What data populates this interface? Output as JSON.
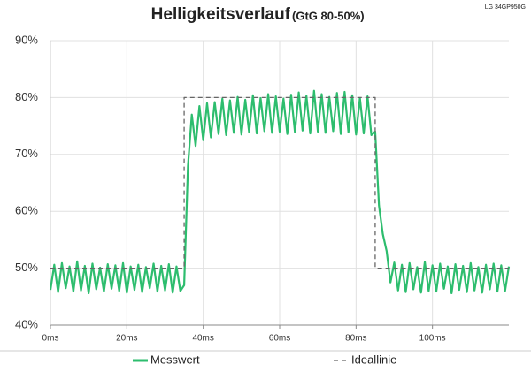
{
  "chart_data": {
    "type": "line",
    "title": "Helligkeitsverlauf",
    "subtitle": "(GtG 80-50%)",
    "annotation": "LG 34GP950G",
    "x": [
      0,
      1,
      2,
      3,
      4,
      5,
      6,
      7,
      8,
      9,
      10,
      11,
      12,
      13,
      14,
      15,
      16,
      17,
      18,
      19,
      20,
      21,
      22,
      23,
      24,
      25,
      26,
      27,
      28,
      29,
      30,
      31,
      32,
      33,
      34,
      35,
      36,
      37,
      38,
      39,
      40,
      41,
      42,
      43,
      44,
      45,
      46,
      47,
      48,
      49,
      50,
      51,
      52,
      53,
      54,
      55,
      56,
      57,
      58,
      59,
      60,
      61,
      62,
      63,
      64,
      65,
      66,
      67,
      68,
      69,
      70,
      71,
      72,
      73,
      74,
      75,
      76,
      77,
      78,
      79,
      80,
      81,
      82,
      83,
      84,
      85,
      86,
      87,
      88,
      89,
      90,
      91,
      92,
      93,
      94,
      95,
      96,
      97,
      98,
      99,
      100,
      101,
      102,
      103,
      104,
      105,
      106,
      107,
      108,
      109,
      110,
      111,
      112,
      113,
      114,
      115,
      116,
      117,
      118,
      119,
      120
    ],
    "series": [
      {
        "name": "Messwert",
        "color": "#2dbd6e",
        "dash": false,
        "values": [
          46.2,
          50.6,
          45.8,
          50.9,
          46.5,
          50.3,
          45.9,
          51.2,
          46.1,
          50.4,
          45.6,
          50.8,
          46.3,
          50.1,
          45.9,
          50.7,
          46.4,
          50.5,
          46.0,
          50.9,
          45.7,
          50.3,
          46.2,
          50.6,
          45.8,
          50.2,
          46.5,
          50.8,
          45.9,
          50.4,
          46.1,
          50.7,
          45.7,
          50.3,
          46.0,
          47,
          68,
          77,
          71.5,
          78.5,
          72.5,
          79,
          73,
          79.2,
          73.6,
          79.8,
          73.4,
          79.5,
          73.8,
          80.1,
          73.5,
          79.6,
          73.9,
          80.4,
          73.7,
          79.9,
          74.1,
          80.6,
          73.8,
          80.2,
          74.0,
          79.8,
          73.6,
          80.5,
          73.9,
          80.9,
          74.2,
          80.3,
          73.7,
          81.2,
          74.0,
          80.6,
          73.8,
          80.1,
          74.1,
          80.8,
          73.6,
          81.0,
          73.9,
          80.4,
          73.5,
          79.9,
          73.7,
          80.2,
          73.4,
          74,
          61,
          56,
          53,
          47.5,
          51,
          46.1,
          50.6,
          45.8,
          50.9,
          46.3,
          50.2,
          45.7,
          51.1,
          46.0,
          50.5,
          45.9,
          50.8,
          46.4,
          50.3,
          45.6,
          50.7,
          46.2,
          50.4,
          45.8,
          50.9,
          46.1,
          50.2,
          45.7,
          50.6,
          46.3,
          50.8,
          45.9,
          50.5,
          46.0,
          50.3
        ]
      },
      {
        "name": "Ideallinie",
        "color": "#666666",
        "dash": true,
        "x": [
          0,
          35,
          35,
          85,
          85,
          120
        ],
        "values": [
          50,
          50,
          80,
          80,
          50,
          50
        ]
      }
    ],
    "xlim": [
      0,
      120
    ],
    "xticks": [
      {
        "value": 0,
        "label": "0ms"
      },
      {
        "value": 20,
        "label": "20ms"
      },
      {
        "value": 40,
        "label": "40ms"
      },
      {
        "value": 60,
        "label": "60ms"
      },
      {
        "value": 80,
        "label": "80ms"
      },
      {
        "value": 100,
        "label": "100ms"
      }
    ],
    "ylim": [
      40,
      90
    ],
    "yticks": [
      {
        "value": 40,
        "label": "40%"
      },
      {
        "value": 50,
        "label": "50%"
      },
      {
        "value": 60,
        "label": "60%"
      },
      {
        "value": 70,
        "label": "70%"
      },
      {
        "value": 80,
        "label": "80%"
      },
      {
        "value": 90,
        "label": "90%"
      }
    ],
    "grid": true
  }
}
